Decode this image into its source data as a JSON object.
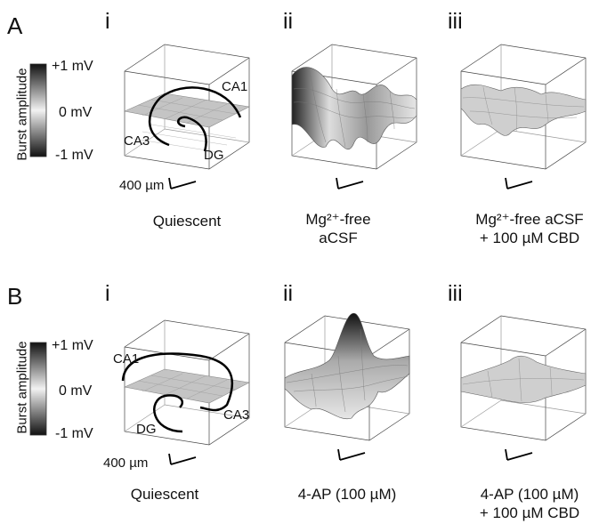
{
  "rows": [
    {
      "letter": "A",
      "colorbar": {
        "title": "Burst amplitude",
        "top": "+1 mV",
        "mid": "0 mV",
        "bottom": "-1 mV"
      },
      "scale_bar": "400 µm",
      "regions": [
        "CA1",
        "CA3",
        "DG"
      ],
      "panels": [
        {
          "roman": "i",
          "caption_line1": "Quiescent",
          "caption_line2": ""
        },
        {
          "roman": "ii",
          "caption_line1": "Mg²⁺-free",
          "caption_line2": "aCSF"
        },
        {
          "roman": "iii",
          "caption_line1": "Mg²⁺-free aCSF",
          "caption_line2": "+ 100 µM CBD"
        }
      ]
    },
    {
      "letter": "B",
      "colorbar": {
        "title": "Burst amplitude",
        "top": "+1 mV",
        "mid": "0 mV",
        "bottom": "-1 mV"
      },
      "scale_bar": "400 µm",
      "regions": [
        "CA1",
        "CA3",
        "DG"
      ],
      "panels": [
        {
          "roman": "i",
          "caption_line1": "Quiescent",
          "caption_line2": ""
        },
        {
          "roman": "ii",
          "caption_line1": "4-AP (100 µM)",
          "caption_line2": ""
        },
        {
          "roman": "iii",
          "caption_line1": "4-AP (100 µM)",
          "caption_line2": "+ 100 µM CBD"
        }
      ]
    }
  ]
}
